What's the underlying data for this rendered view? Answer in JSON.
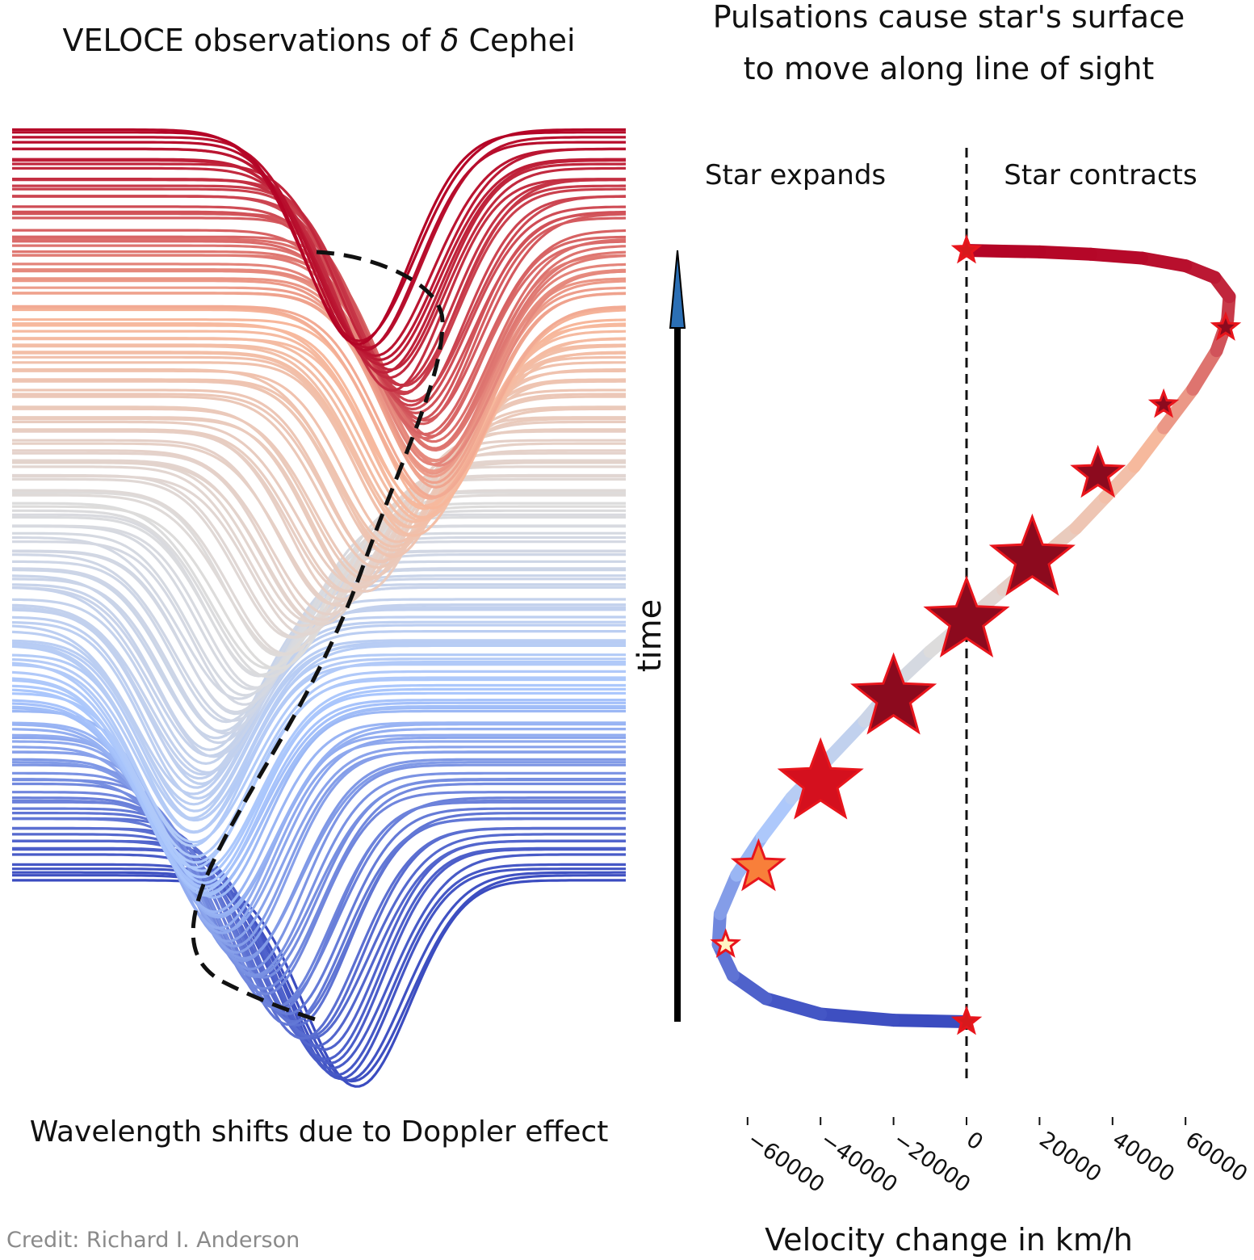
{
  "left_panel": {
    "title_prefix": "VELOCE observations of ",
    "title_symbol": "δ",
    "title_suffix": " Cephei",
    "xlabel": "Wavelength shifts due to Doppler effect"
  },
  "right_panel": {
    "title_line1": "Pulsations cause star's surface",
    "title_line2": "to move along line of sight",
    "label_expands": "Star expands",
    "label_contracts": "Star contracts",
    "time_label": "time",
    "xlabel": "Velocity change in km/h"
  },
  "credit": "Credit: Richard I. Anderson",
  "colors": {
    "blue": "#3b4cc0",
    "light_blue": "#aac7fd",
    "grey": "#dddcdc",
    "light_red": "#f7b89c",
    "red": "#b40426",
    "star_edge": "#e8151c",
    "arrow_head": "#2b6fb5"
  },
  "chart_data": {
    "type": "line",
    "title": "Pulsations cause star's surface to move along line of sight",
    "xlabel": "Velocity change in km/h",
    "xlim": [
      -72000,
      80000
    ],
    "x_ticks": [
      -60000,
      -40000,
      -20000,
      0,
      20000,
      40000,
      60000
    ],
    "x_tick_labels": [
      "−60000",
      "−40000",
      "−20000",
      "0",
      "20000",
      "40000",
      "60000"
    ],
    "reference_line_x": 0,
    "series": [
      {
        "x": [
          0,
          -20000,
          -40000,
          -55000,
          -64000,
          -68000,
          -67500,
          -63000,
          -56000,
          -48000,
          -38000,
          -28000,
          -19000,
          -10000,
          0,
          10000,
          20000,
          30000,
          38000,
          46000,
          54000,
          62000,
          68500,
          71500,
          72000,
          68000,
          60000,
          48000,
          34000,
          20000,
          10000,
          0
        ],
        "y": [
          0,
          0.002,
          0.01,
          0.03,
          0.06,
          0.1,
          0.14,
          0.19,
          0.24,
          0.29,
          0.34,
          0.39,
          0.44,
          0.48,
          0.52,
          0.56,
          0.6,
          0.64,
          0.68,
          0.72,
          0.77,
          0.82,
          0.87,
          0.91,
          0.94,
          0.965,
          0.98,
          0.99,
          0.995,
          0.998,
          0.999,
          1.0
        ]
      }
    ],
    "markers": [
      {
        "x": 0,
        "y": 0.0,
        "size": "small",
        "fill": "#d7191c"
      },
      {
        "x": -66000,
        "y": 0.1,
        "size": "small",
        "fill": "#fff5c4"
      },
      {
        "x": -57000,
        "y": 0.2,
        "size": "medium",
        "fill": "#f87f3a"
      },
      {
        "x": -40000,
        "y": 0.31,
        "size": "large",
        "fill": "#d4101e"
      },
      {
        "x": -20000,
        "y": 0.42,
        "size": "large",
        "fill": "#8c0a1e"
      },
      {
        "x": 0,
        "y": 0.52,
        "size": "large",
        "fill": "#8c0a1e"
      },
      {
        "x": 18000,
        "y": 0.6,
        "size": "large",
        "fill": "#8c0a1e"
      },
      {
        "x": 36000,
        "y": 0.71,
        "size": "medium",
        "fill": "#8c0a1e"
      },
      {
        "x": 54000,
        "y": 0.8,
        "size": "small",
        "fill": "#8c0a1e"
      },
      {
        "x": 71000,
        "y": 0.9,
        "size": "small",
        "fill": "#8c0a1e"
      },
      {
        "x": 0,
        "y": 1.0,
        "size": "small",
        "fill": "#d7191c"
      }
    ]
  }
}
